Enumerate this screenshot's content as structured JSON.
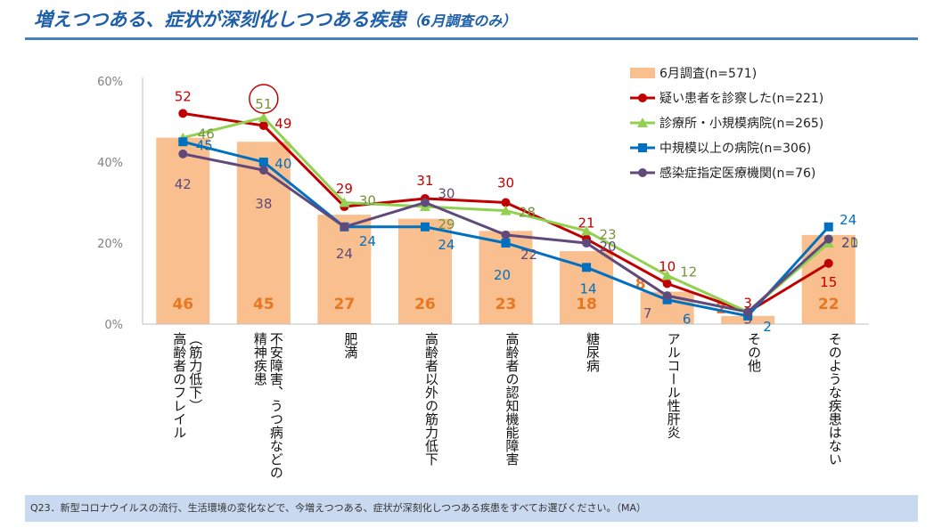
{
  "title": "増えつつある、症状が深刻化しつつある疾患",
  "title_suffix": "（6月調査のみ）",
  "footer": "Q23．新型コロナウイルスの流行、生活環境の変化などで、今増えつつある、症状が深刻化しつつある疾患をすべてお選びください。（MA）",
  "colors": {
    "bar": "#f9bf8e",
    "bar_label": "#e87722",
    "red": "#c00000",
    "green": "#92d050",
    "green_label": "#77933c",
    "blue": "#0070c0",
    "purple": "#604a7b",
    "axis_text": "#808080"
  },
  "chart_data": {
    "type": "bar",
    "categories": [
      "高齢者のフレイル（筋力低下）",
      "精神疾患不安障害、うつ病などの",
      "肥満",
      "高齢者以外の筋力低下",
      "高齢者の認知機能障害",
      "糖尿病",
      "アルコール性肝炎",
      "その他",
      "そのような疾患はない"
    ],
    "category_lines": [
      [
        "高齢者のフレイル",
        "（筋力低下）"
      ],
      [
        "精神疾患",
        "不安障害、うつ病などの"
      ],
      [
        "肥満"
      ],
      [
        "高齢者以外の筋力低下"
      ],
      [
        "高齢者の認知機能障害"
      ],
      [
        "糖尿病"
      ],
      [
        "アルコール性肝炎"
      ],
      [
        "その他"
      ],
      [
        "そのような疾患はない"
      ]
    ],
    "series": [
      {
        "name": "6月調査(n=571)",
        "kind": "bar",
        "color": "#f9bf8e",
        "values": [
          46,
          45,
          27,
          26,
          23,
          18,
          8,
          2,
          22
        ]
      },
      {
        "name": "疑い患者を診察した(n=221)",
        "kind": "line",
        "marker": "circle",
        "color": "#c00000",
        "values": [
          52,
          49,
          29,
          31,
          30,
          21,
          10,
          3,
          15
        ]
      },
      {
        "name": "診療所・小規模病院(n=265)",
        "kind": "line",
        "marker": "triangle",
        "color": "#92d050",
        "label_color": "#77933c",
        "values": [
          46,
          51,
          30,
          29,
          28,
          23,
          12,
          3,
          20
        ]
      },
      {
        "name": "中規模以上の病院(n=306)",
        "kind": "line",
        "marker": "square",
        "color": "#0070c0",
        "values": [
          45,
          40,
          24,
          24,
          20,
          14,
          6,
          2,
          24
        ]
      },
      {
        "name": "感染症指定医療機関(n=76)",
        "kind": "line",
        "marker": "circle",
        "color": "#604a7b",
        "values": [
          42,
          38,
          24,
          30,
          22,
          20,
          7,
          3,
          21
        ]
      }
    ],
    "yticks": [
      "0%",
      "20%",
      "40%",
      "60%"
    ],
    "ylim": [
      0,
      60
    ],
    "legend_position": "top-right",
    "highlight": {
      "series": 2,
      "index": 1
    },
    "grid": false
  }
}
